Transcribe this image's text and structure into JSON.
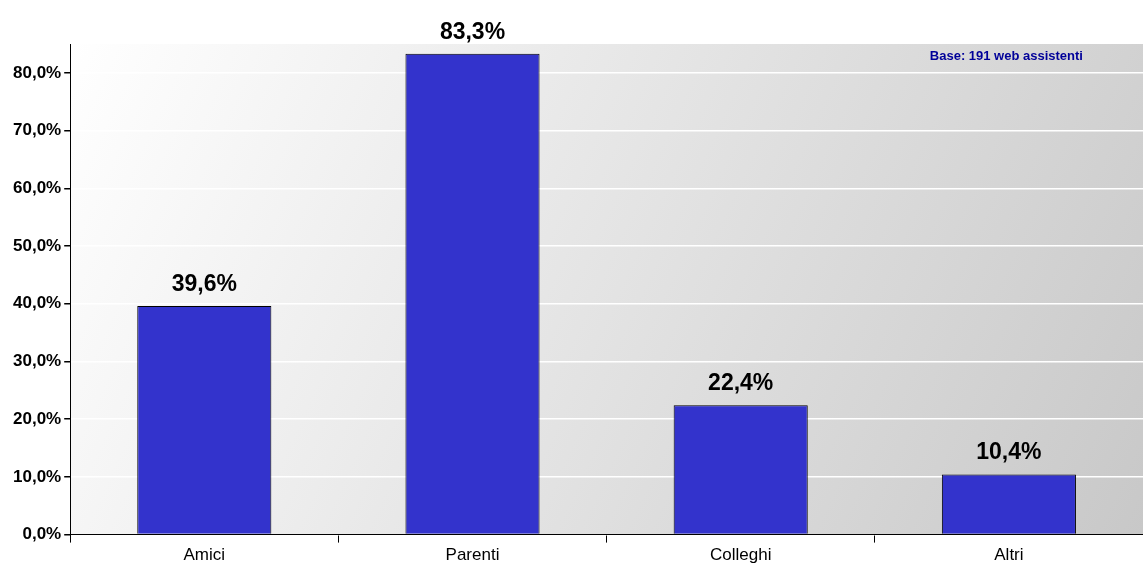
{
  "chart_data": {
    "type": "bar",
    "categories": [
      "Amici",
      "Parenti",
      "Colleghi",
      "Altri"
    ],
    "values": [
      39.6,
      83.3,
      22.4,
      10.4
    ],
    "value_labels": [
      "39,6%",
      "83,3%",
      "22,4%",
      "10,4%"
    ],
    "color": "#3333cc",
    "ylim": [
      0,
      85
    ],
    "yticks": [
      {
        "value": 0,
        "label": "0,0%"
      },
      {
        "value": 10,
        "label": "10,0%"
      },
      {
        "value": 20,
        "label": "20,0%"
      },
      {
        "value": 30,
        "label": "30,0%"
      },
      {
        "value": 40,
        "label": "40,0%"
      },
      {
        "value": 50,
        "label": "50,0%"
      },
      {
        "value": 60,
        "label": "60,0%"
      },
      {
        "value": 70,
        "label": "70,0%"
      },
      {
        "value": 80,
        "label": "80,0%"
      }
    ],
    "grid": "y",
    "annotations": [
      "Base: 191 web assistenti"
    ]
  }
}
